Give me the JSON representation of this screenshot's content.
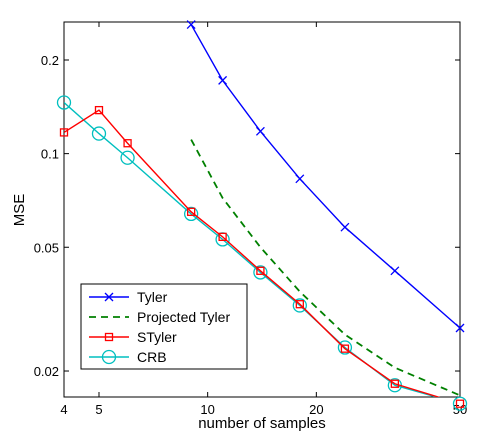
{
  "chart_data": {
    "type": "line",
    "title": "",
    "xlabel": "number of samples",
    "ylabel": "MSE",
    "x_scale": "log",
    "y_scale": "log",
    "xlim": [
      4,
      50
    ],
    "ylim": [
      0.0165,
      0.265
    ],
    "x_ticks": [
      4,
      5,
      10,
      20,
      50
    ],
    "x_tick_labels": [
      "4",
      "5",
      "10",
      "20",
      "50"
    ],
    "y_ticks": [
      0.02,
      0.05,
      0.1,
      0.2
    ],
    "y_tick_labels": [
      "0.02",
      "0.05",
      "0.1",
      "0.2"
    ],
    "grid": false,
    "legend_position": "bottom-left",
    "series": [
      {
        "name": "Tyler",
        "color": "#0000ff",
        "line_style": "solid",
        "marker": "x",
        "x": [
          9,
          11,
          14,
          18,
          24,
          33,
          50
        ],
        "y": [
          0.26,
          0.172,
          0.118,
          0.083,
          0.058,
          0.042,
          0.0275
        ]
      },
      {
        "name": "Projected Tyler",
        "color": "#008000",
        "line_style": "dashed",
        "marker": "none",
        "x": [
          9,
          11,
          14,
          18,
          24,
          33,
          50
        ],
        "y": [
          0.111,
          0.072,
          0.05,
          0.036,
          0.0262,
          0.0205,
          0.0167
        ]
      },
      {
        "name": "STyler",
        "color": "#ff0000",
        "line_style": "solid",
        "marker": "square",
        "x": [
          4,
          5,
          6,
          9,
          11,
          14,
          18,
          24,
          33,
          50
        ],
        "y": [
          0.117,
          0.138,
          0.108,
          0.065,
          0.054,
          0.042,
          0.0328,
          0.0236,
          0.0182,
          0.0157
        ]
      },
      {
        "name": "CRB",
        "color": "#00bfbf",
        "line_style": "solid",
        "marker": "circle",
        "x": [
          4,
          5,
          6,
          9,
          11,
          14,
          18,
          24,
          33,
          50
        ],
        "y": [
          0.146,
          0.116,
          0.097,
          0.064,
          0.053,
          0.0415,
          0.0325,
          0.0238,
          0.018,
          0.0157
        ]
      }
    ]
  }
}
